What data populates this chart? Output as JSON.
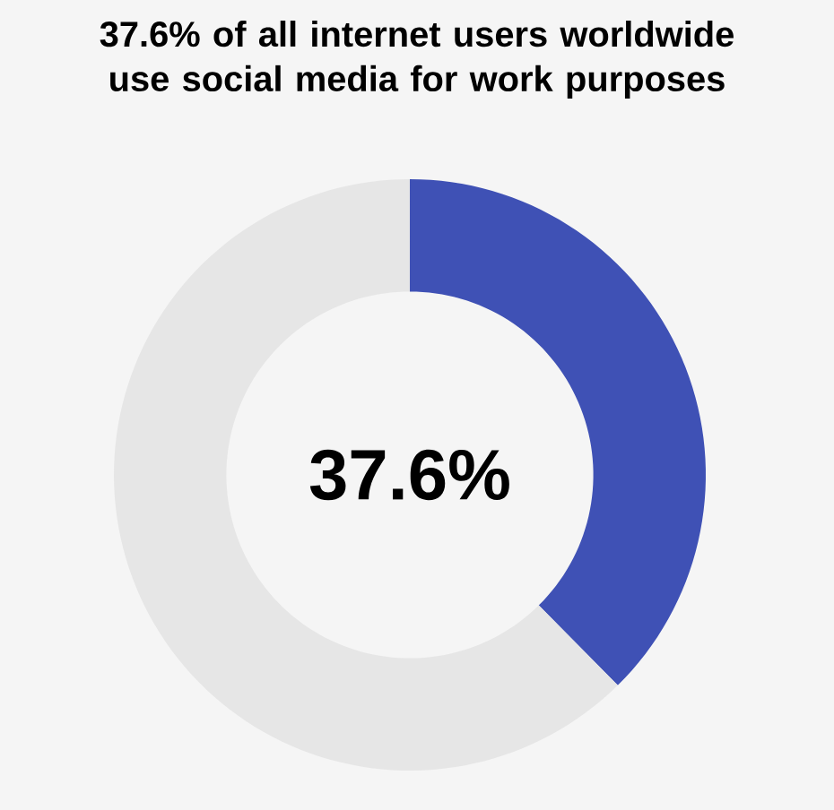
{
  "chart_data": {
    "type": "donut",
    "title": "37.6% of all internet users worldwide use social media for work purposes",
    "categories": [
      null,
      null
    ],
    "values": [
      37.6,
      62.4
    ],
    "colors": [
      "#3f51b5",
      "#e6e6e6"
    ],
    "annotations": [
      "37.6%"
    ]
  }
}
